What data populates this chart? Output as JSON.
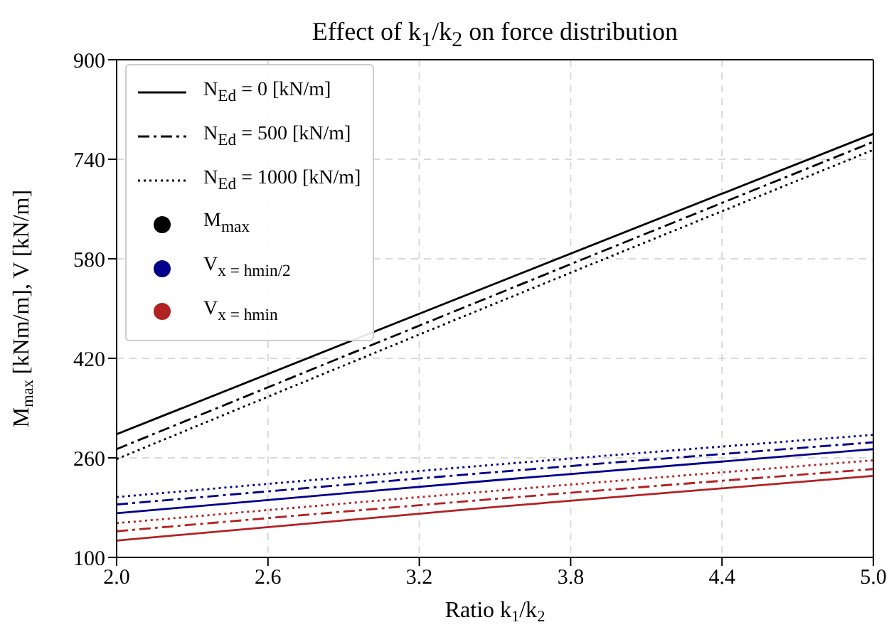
{
  "chart_data": {
    "type": "line",
    "title": "Effect of k$_{1}$/k$_{2}$ on force distribution",
    "xlabel": "Ratio k$_{1}$/k$_{2}$",
    "ylabel": "M$_{max}$ [kNm/m],  V [kN/m]",
    "x": [
      2.0,
      3.5,
      5.0
    ],
    "series": [
      {
        "name": "N$_{Ed}$ = 0 [kN/m]",
        "color": "#000000",
        "line_style": "solid",
        "values": [
          298,
          540,
          781
        ]
      },
      {
        "name": "N$_{Ed}$ = 500 [kN/m]",
        "color": "#000000",
        "line_style": "dashdot",
        "values": [
          274,
          522,
          768
        ]
      },
      {
        "name": "N$_{Ed}$ = 1000 [kN/m]",
        "color": "#000000",
        "line_style": "dotted",
        "values": [
          258,
          508,
          755
        ]
      },
      {
        "color": "#00008b",
        "line_style": "solid",
        "values": [
          171,
          224,
          274
        ]
      },
      {
        "color": "#00008b",
        "line_style": "dashdot",
        "values": [
          185,
          237,
          285
        ]
      },
      {
        "color": "#00008b",
        "line_style": "dotted",
        "values": [
          197,
          249,
          297
        ]
      },
      {
        "color": "#b22222",
        "line_style": "solid",
        "values": [
          127,
          181,
          231
        ]
      },
      {
        "color": "#b22222",
        "line_style": "dashdot",
        "values": [
          142,
          194,
          242
        ]
      },
      {
        "color": "#b22222",
        "line_style": "dotted",
        "values": [
          155,
          207,
          256
        ]
      }
    ],
    "annotations": [
      "M$_{max}$",
      "V$_{x = hmin/2}$",
      "V$_{x = hmin}$"
    ],
    "xlim": [
      2.0,
      5.0
    ],
    "xticks": [
      {
        "value": 2,
        "label": "2.0"
      },
      2.6,
      3.2,
      3.8,
      4.4,
      {
        "value": 5,
        "label": "5.0"
      }
    ],
    "ylim": [
      100,
      900
    ],
    "yticks": [
      100,
      260,
      420,
      580,
      740,
      900
    ],
    "grid": true,
    "legend": "top left",
    "marker": "none"
  }
}
